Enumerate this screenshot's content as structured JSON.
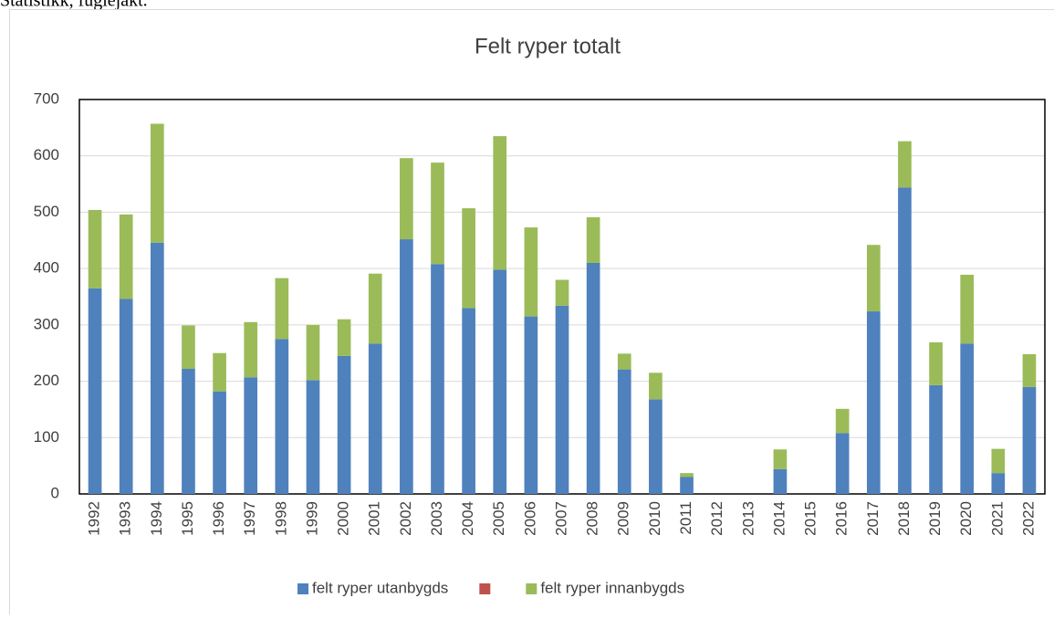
{
  "header": "Statistikk, fuglejakt.",
  "chart_data": {
    "type": "stacked-bar",
    "title": "Felt ryper totalt",
    "categories": [
      "1992",
      "1993",
      "1994",
      "1995",
      "1996",
      "1997",
      "1998",
      "1999",
      "2000",
      "2001",
      "2002",
      "2003",
      "2004",
      "2005",
      "2006",
      "2007",
      "2008",
      "2009",
      "2010",
      "2011",
      "2012",
      "2013",
      "2014",
      "2015",
      "2016",
      "2017",
      "2018",
      "2019",
      "2020",
      "2021",
      "2022"
    ],
    "series": [
      {
        "name": "felt ryper utanbygds",
        "color": "#4f81bd",
        "values": [
          365,
          346,
          446,
          222,
          182,
          207,
          275,
          202,
          245,
          267,
          452,
          408,
          330,
          398,
          315,
          334,
          410,
          221,
          168,
          30,
          null,
          null,
          44,
          null,
          108,
          324,
          544,
          193,
          267,
          37,
          190
        ]
      },
      {
        "color": "#c0504d",
        "values": [
          null,
          null,
          null,
          null,
          null,
          null,
          null,
          null,
          null,
          null,
          null,
          null,
          null,
          null,
          null,
          null,
          null,
          null,
          null,
          null,
          null,
          null,
          null,
          null,
          null,
          null,
          null,
          null,
          null,
          null,
          null
        ]
      },
      {
        "name": "felt ryper  innanbygds",
        "color": "#9bbb59",
        "values": [
          139,
          150,
          211,
          77,
          68,
          98,
          108,
          98,
          65,
          124,
          144,
          180,
          177,
          237,
          158,
          46,
          81,
          28,
          47,
          7,
          null,
          null,
          35,
          null,
          43,
          118,
          82,
          76,
          122,
          43,
          58
        ]
      }
    ],
    "ylim": [
      0,
      700
    ],
    "yticks": [
      0,
      100,
      200,
      300,
      400,
      500,
      600,
      700
    ],
    "grid": true,
    "legend": "bottom"
  }
}
